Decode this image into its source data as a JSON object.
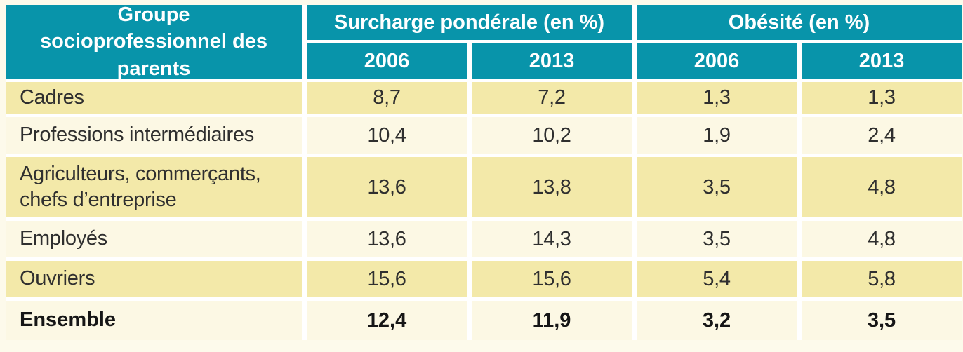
{
  "table": {
    "corner_header": "Groupe socioprofessionnel des parents",
    "groups": [
      {
        "label": "Surcharge pondérale (en %)",
        "years": [
          "2006",
          "2013"
        ]
      },
      {
        "label": "Obésité (en %)",
        "years": [
          "2006",
          "2013"
        ]
      }
    ],
    "rows": [
      {
        "label": "Cadres",
        "values": [
          "8,7",
          "7,2",
          "1,3",
          "1,3"
        ]
      },
      {
        "label": "Professions intermédiaires",
        "values": [
          "10,4",
          "10,2",
          "1,9",
          "2,4"
        ]
      },
      {
        "label": "Agriculteurs, commerçants, chefs d’entreprise",
        "values": [
          "13,6",
          "13,8",
          "3,5",
          "4,8"
        ]
      },
      {
        "label": "Employés",
        "values": [
          "13,6",
          "14,3",
          "3,5",
          "4,8"
        ]
      },
      {
        "label": "Ouvriers",
        "values": [
          "15,6",
          "15,6",
          "5,4",
          "5,8"
        ]
      },
      {
        "label": "Ensemble",
        "values": [
          "12,4",
          "11,9",
          "3,2",
          "3,5"
        ]
      }
    ],
    "colors": {
      "header_bg": "#0894AA",
      "row_yellow": "#F3E9A9",
      "row_cream": "#FCF8E4",
      "divider": "#FFFFFF",
      "page_bg": "#FDFAEB",
      "header_text": "#FFFFFF",
      "body_text": "#2F2F2F"
    }
  },
  "chart_data": {
    "type": "table",
    "row_header": "Groupe socioprofessionnel des parents",
    "column_groups": [
      {
        "label": "Surcharge pondérale (en %)",
        "columns": [
          "2006",
          "2013"
        ]
      },
      {
        "label": "Obésité (en %)",
        "columns": [
          "2006",
          "2013"
        ]
      }
    ],
    "unit": "%",
    "decimal_separator": ",",
    "rows": [
      {
        "label": "Cadres",
        "values": [
          8.7,
          7.2,
          1.3,
          1.3
        ]
      },
      {
        "label": "Professions intermédiaires",
        "values": [
          10.4,
          10.2,
          1.9,
          2.4
        ]
      },
      {
        "label": "Agriculteurs, commerçants, chefs d’entreprise",
        "values": [
          13.6,
          13.8,
          3.5,
          4.8
        ]
      },
      {
        "label": "Employés",
        "values": [
          13.6,
          14.3,
          3.5,
          4.8
        ]
      },
      {
        "label": "Ouvriers",
        "values": [
          15.6,
          15.6,
          5.4,
          5.8
        ]
      },
      {
        "label": "Ensemble",
        "values": [
          12.4,
          11.9,
          3.2,
          3.5
        ],
        "emphasis": true
      }
    ]
  }
}
